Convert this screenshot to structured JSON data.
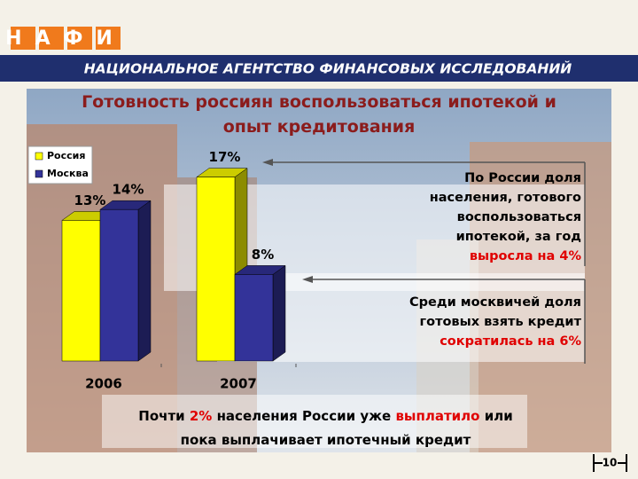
{
  "header": {
    "logo": "НАФИ",
    "banner": "НАЦИОНАЛЬНОЕ АГЕНТСТВО ФИНАНСОВЫХ ИССЛЕДОВАНИЙ"
  },
  "chart_data": {
    "type": "bar",
    "title": "Готовность россиян воспользоваться ипотекой и опыт кредитования",
    "categories": [
      "2006",
      "2007"
    ],
    "series": [
      {
        "name": "Россия",
        "color": "#ffff00",
        "values": [
          13,
          17
        ],
        "value_labels": [
          "13%",
          "17%"
        ]
      },
      {
        "name": "Москва",
        "color": "#333399",
        "values": [
          14,
          8
        ],
        "value_labels": [
          "14%",
          "8%"
        ]
      }
    ],
    "ylim": [
      0,
      20
    ],
    "legend": "upper left"
  },
  "callouts": [
    {
      "parts": [
        {
          "text": "По России доля населения, готового воспользоваться ипотекой, за год ",
          "red": false
        },
        {
          "text": "выросла на 4%",
          "red": true
        }
      ]
    },
    {
      "parts": [
        {
          "text": "Среди москвичей доля готовых взять кредит ",
          "red": false
        },
        {
          "text": "сократилась на 6%",
          "red": true
        }
      ]
    }
  ],
  "footer": {
    "parts": [
      {
        "text": "Почти ",
        "red": false
      },
      {
        "text": "2%",
        "red": true
      },
      {
        "text": " населения России уже ",
        "red": false
      },
      {
        "text": "выплатило",
        "red": true
      },
      {
        "text": " или пока выплачивает ипотечный кредит",
        "red": false
      }
    ]
  },
  "page_number": "10"
}
